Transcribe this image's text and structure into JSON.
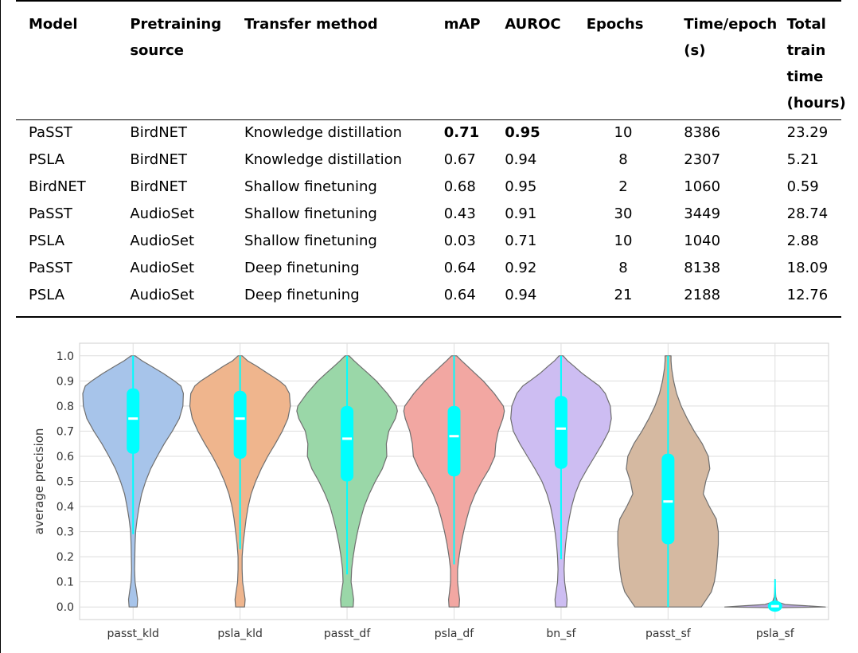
{
  "table": {
    "headers": [
      {
        "key": "model",
        "label": "Model"
      },
      {
        "key": "pre",
        "label": "Pretraining source"
      },
      {
        "key": "tm",
        "label": "Transfer method"
      },
      {
        "key": "map",
        "label": "mAP"
      },
      {
        "key": "auroc",
        "label": "AUROC"
      },
      {
        "key": "ep",
        "label": "Epochs"
      },
      {
        "key": "tpe",
        "label": "Time/epoch (s)"
      },
      {
        "key": "tot",
        "label": "Total train time (hours)"
      }
    ],
    "rows": [
      {
        "model": "PaSST",
        "pre": "BirdNET",
        "tm": "Knowledge distillation",
        "map": "0.71",
        "auroc": "0.95",
        "ep": "10",
        "tpe": "8386",
        "tot": "23.29"
      },
      {
        "model": "PSLA",
        "pre": "BirdNET",
        "tm": "Knowledge distillation",
        "map": "0.67",
        "auroc": "0.94",
        "ep": "8",
        "tpe": "2307",
        "tot": "5.21"
      },
      {
        "model": "BirdNET",
        "pre": "BirdNET",
        "tm": "Shallow finetuning",
        "map": "0.68",
        "auroc": "0.95",
        "ep": "2",
        "tpe": "1060",
        "tot": "0.59"
      },
      {
        "model": "PaSST",
        "pre": "AudioSet",
        "tm": "Shallow finetuning",
        "map": "0.43",
        "auroc": "0.91",
        "ep": "30",
        "tpe": "3449",
        "tot": "28.74"
      },
      {
        "model": "PSLA",
        "pre": "AudioSet",
        "tm": "Shallow finetuning",
        "map": "0.03",
        "auroc": "0.71",
        "ep": "10",
        "tpe": "1040",
        "tot": "2.88"
      },
      {
        "model": "PaSST",
        "pre": "AudioSet",
        "tm": "Deep finetuning",
        "map": "0.64",
        "auroc": "0.92",
        "ep": "8",
        "tpe": "8138",
        "tot": "18.09"
      },
      {
        "model": "PSLA",
        "pre": "AudioSet",
        "tm": "Deep finetuning",
        "map": "0.64",
        "auroc": "0.94",
        "ep": "21",
        "tpe": "2188",
        "tot": "12.76"
      }
    ],
    "bold_cells": [
      [
        0,
        "map"
      ],
      [
        0,
        "auroc"
      ]
    ]
  },
  "chart_data": {
    "type": "violin",
    "title": "",
    "xlabel": "",
    "ylabel": "average precision",
    "ylim": [
      -0.05,
      1.05
    ],
    "yticks": [
      "0.0",
      "0.1",
      "0.2",
      "0.3",
      "0.4",
      "0.5",
      "0.6",
      "0.7",
      "0.8",
      "0.9",
      "1.0"
    ],
    "grid": true,
    "legend": "none",
    "box_color": "#00ffff",
    "median_color": "#ffffff",
    "categories": [
      {
        "label": "passt_kld",
        "color": "#a7c4ea",
        "min": 0.0,
        "q1": 0.61,
        "median": 0.75,
        "q3": 0.87,
        "whisker_low": 0.29,
        "max": 1.0,
        "density": [
          [
            0.0,
            0.08
          ],
          [
            0.03,
            0.09
          ],
          [
            0.06,
            0.07
          ],
          [
            0.1,
            0.04
          ],
          [
            0.15,
            0.03
          ],
          [
            0.2,
            0.035
          ],
          [
            0.25,
            0.04
          ],
          [
            0.3,
            0.05
          ],
          [
            0.35,
            0.08
          ],
          [
            0.4,
            0.12
          ],
          [
            0.45,
            0.17
          ],
          [
            0.5,
            0.25
          ],
          [
            0.55,
            0.35
          ],
          [
            0.6,
            0.48
          ],
          [
            0.65,
            0.62
          ],
          [
            0.7,
            0.78
          ],
          [
            0.75,
            0.92
          ],
          [
            0.8,
            0.99
          ],
          [
            0.85,
            1.0
          ],
          [
            0.88,
            0.95
          ],
          [
            0.9,
            0.82
          ],
          [
            0.93,
            0.6
          ],
          [
            0.96,
            0.35
          ],
          [
            0.98,
            0.18
          ],
          [
            1.0,
            0.04
          ]
        ]
      },
      {
        "label": "psla_kld",
        "color": "#efb58d",
        "min": 0.0,
        "q1": 0.59,
        "median": 0.75,
        "q3": 0.86,
        "whisker_low": 0.23,
        "max": 1.0,
        "density": [
          [
            0.0,
            0.09
          ],
          [
            0.03,
            0.1
          ],
          [
            0.06,
            0.08
          ],
          [
            0.1,
            0.05
          ],
          [
            0.15,
            0.04
          ],
          [
            0.2,
            0.04
          ],
          [
            0.25,
            0.06
          ],
          [
            0.3,
            0.09
          ],
          [
            0.35,
            0.12
          ],
          [
            0.4,
            0.16
          ],
          [
            0.45,
            0.22
          ],
          [
            0.5,
            0.31
          ],
          [
            0.55,
            0.42
          ],
          [
            0.6,
            0.55
          ],
          [
            0.65,
            0.7
          ],
          [
            0.7,
            0.84
          ],
          [
            0.75,
            0.95
          ],
          [
            0.8,
            1.0
          ],
          [
            0.85,
            0.98
          ],
          [
            0.88,
            0.9
          ],
          [
            0.9,
            0.78
          ],
          [
            0.93,
            0.55
          ],
          [
            0.96,
            0.32
          ],
          [
            0.98,
            0.15
          ],
          [
            1.0,
            0.04
          ]
        ]
      },
      {
        "label": "passt_df",
        "color": "#9ad7a8",
        "min": 0.0,
        "q1": 0.5,
        "median": 0.67,
        "q3": 0.8,
        "whisker_low": 0.13,
        "max": 1.0,
        "density": [
          [
            0.0,
            0.12
          ],
          [
            0.03,
            0.13
          ],
          [
            0.06,
            0.11
          ],
          [
            0.1,
            0.08
          ],
          [
            0.15,
            0.09
          ],
          [
            0.2,
            0.12
          ],
          [
            0.25,
            0.16
          ],
          [
            0.3,
            0.21
          ],
          [
            0.35,
            0.27
          ],
          [
            0.4,
            0.34
          ],
          [
            0.45,
            0.44
          ],
          [
            0.5,
            0.56
          ],
          [
            0.55,
            0.7
          ],
          [
            0.6,
            0.79
          ],
          [
            0.65,
            0.78
          ],
          [
            0.7,
            0.83
          ],
          [
            0.75,
            0.96
          ],
          [
            0.78,
            1.0
          ],
          [
            0.8,
            0.98
          ],
          [
            0.85,
            0.8
          ],
          [
            0.9,
            0.58
          ],
          [
            0.93,
            0.42
          ],
          [
            0.96,
            0.25
          ],
          [
            0.98,
            0.14
          ],
          [
            1.0,
            0.04
          ]
        ]
      },
      {
        "label": "psla_df",
        "color": "#f2a7a2",
        "min": 0.0,
        "q1": 0.52,
        "median": 0.68,
        "q3": 0.8,
        "whisker_low": 0.17,
        "max": 1.0,
        "density": [
          [
            0.0,
            0.1
          ],
          [
            0.03,
            0.11
          ],
          [
            0.06,
            0.09
          ],
          [
            0.1,
            0.07
          ],
          [
            0.15,
            0.07
          ],
          [
            0.2,
            0.1
          ],
          [
            0.25,
            0.14
          ],
          [
            0.3,
            0.19
          ],
          [
            0.35,
            0.25
          ],
          [
            0.4,
            0.32
          ],
          [
            0.45,
            0.42
          ],
          [
            0.5,
            0.55
          ],
          [
            0.55,
            0.7
          ],
          [
            0.6,
            0.81
          ],
          [
            0.65,
            0.83
          ],
          [
            0.7,
            0.88
          ],
          [
            0.75,
            0.97
          ],
          [
            0.78,
            1.0
          ],
          [
            0.8,
            0.98
          ],
          [
            0.85,
            0.8
          ],
          [
            0.9,
            0.58
          ],
          [
            0.93,
            0.42
          ],
          [
            0.96,
            0.26
          ],
          [
            0.98,
            0.15
          ],
          [
            1.0,
            0.05
          ]
        ]
      },
      {
        "label": "bn_sf",
        "color": "#cdbdf2",
        "min": 0.0,
        "q1": 0.55,
        "median": 0.71,
        "q3": 0.84,
        "whisker_low": 0.19,
        "max": 1.0,
        "density": [
          [
            0.0,
            0.11
          ],
          [
            0.03,
            0.12
          ],
          [
            0.06,
            0.1
          ],
          [
            0.1,
            0.07
          ],
          [
            0.15,
            0.06
          ],
          [
            0.2,
            0.07
          ],
          [
            0.25,
            0.09
          ],
          [
            0.3,
            0.12
          ],
          [
            0.35,
            0.16
          ],
          [
            0.4,
            0.21
          ],
          [
            0.45,
            0.28
          ],
          [
            0.5,
            0.38
          ],
          [
            0.55,
            0.52
          ],
          [
            0.6,
            0.67
          ],
          [
            0.65,
            0.82
          ],
          [
            0.7,
            0.95
          ],
          [
            0.75,
            1.0
          ],
          [
            0.8,
            0.98
          ],
          [
            0.85,
            0.88
          ],
          [
            0.88,
            0.76
          ],
          [
            0.9,
            0.62
          ],
          [
            0.93,
            0.42
          ],
          [
            0.96,
            0.25
          ],
          [
            0.98,
            0.13
          ],
          [
            1.0,
            0.04
          ]
        ]
      },
      {
        "label": "passt_sf",
        "color": "#d5b9a1",
        "min": 0.0,
        "q1": 0.25,
        "median": 0.42,
        "q3": 0.61,
        "whisker_low": 0.0,
        "max": 1.0,
        "density": [
          [
            0.0,
            0.66
          ],
          [
            0.03,
            0.76
          ],
          [
            0.06,
            0.86
          ],
          [
            0.1,
            0.92
          ],
          [
            0.15,
            0.96
          ],
          [
            0.2,
            0.98
          ],
          [
            0.25,
            1.0
          ],
          [
            0.3,
            1.0
          ],
          [
            0.35,
            0.96
          ],
          [
            0.4,
            0.82
          ],
          [
            0.45,
            0.7
          ],
          [
            0.5,
            0.75
          ],
          [
            0.55,
            0.83
          ],
          [
            0.6,
            0.8
          ],
          [
            0.65,
            0.68
          ],
          [
            0.7,
            0.52
          ],
          [
            0.75,
            0.38
          ],
          [
            0.8,
            0.26
          ],
          [
            0.85,
            0.17
          ],
          [
            0.9,
            0.11
          ],
          [
            0.95,
            0.07
          ],
          [
            0.98,
            0.06
          ],
          [
            1.0,
            0.06
          ]
        ]
      },
      {
        "label": "psla_sf",
        "color": "#b7a6d9",
        "min": 0.0,
        "q1": 0.0,
        "median": 0.0,
        "q3": 0.01,
        "whisker_low": 0.0,
        "max": 0.11,
        "density": [
          [
            -0.003,
            0.0
          ],
          [
            0.0,
            1.0
          ],
          [
            0.005,
            0.6
          ],
          [
            0.01,
            0.2
          ],
          [
            0.02,
            0.05
          ],
          [
            0.04,
            0.015
          ],
          [
            0.06,
            0.008
          ],
          [
            0.08,
            0.004
          ],
          [
            0.11,
            0.0
          ]
        ]
      }
    ]
  }
}
